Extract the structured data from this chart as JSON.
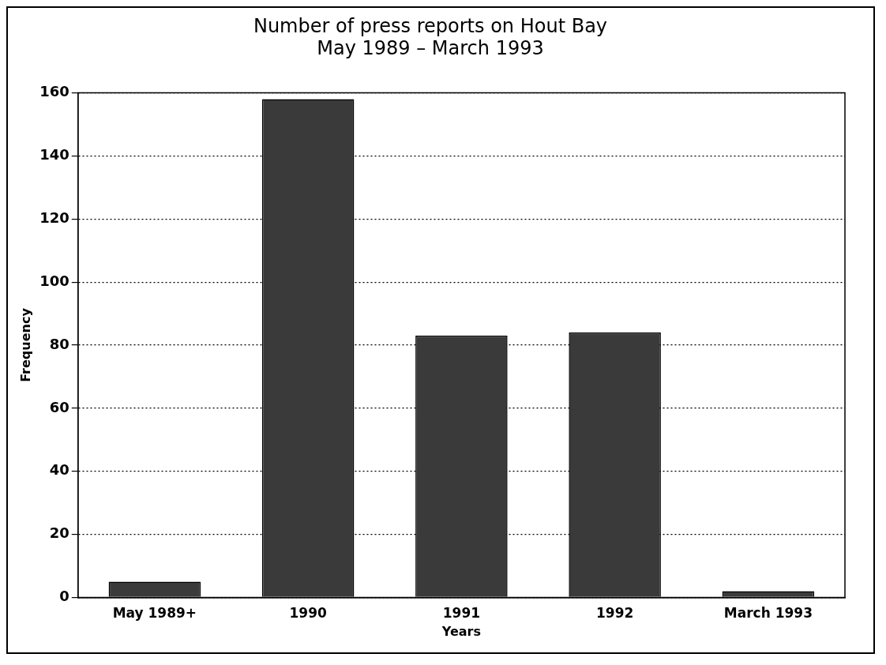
{
  "chart_data": {
    "type": "bar",
    "title": "Number of press reports on Hout Bay\nMay 1989 – March 1993",
    "xlabel": "Years",
    "ylabel": "Frequency",
    "categories": [
      "May 1989+",
      "1990",
      "1991",
      "1992",
      "March 1993"
    ],
    "values": [
      5,
      158,
      83,
      84,
      2
    ],
    "color": "#3a3a3a",
    "ylim": [
      0,
      160
    ],
    "yticks": [
      0,
      20,
      40,
      60,
      80,
      100,
      120,
      140,
      160
    ],
    "grid": "y",
    "line_style": "dotted"
  }
}
